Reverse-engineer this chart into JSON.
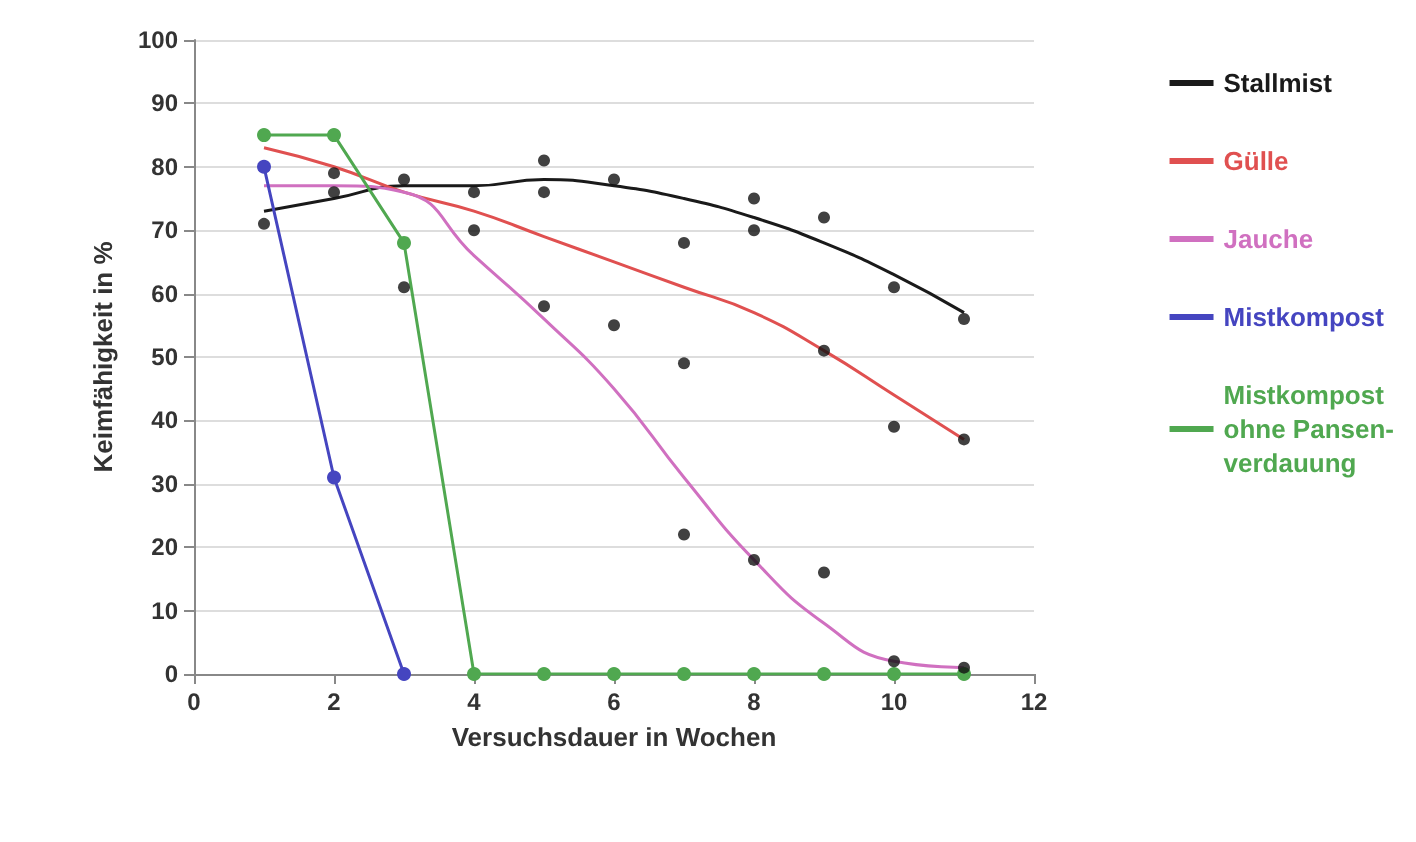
{
  "chart_data": {
    "type": "line",
    "xlabel": "Versuchsdauer in Wochen",
    "ylabel": "Keimfähigkeit in %",
    "xlim": [
      0,
      12
    ],
    "xticks": [
      0,
      2,
      4,
      6,
      8,
      10,
      12
    ],
    "ylim": [
      0,
      100
    ],
    "yticks": [
      0,
      10,
      20,
      30,
      40,
      50,
      60,
      70,
      80,
      90,
      100
    ],
    "grid": "y",
    "legend": "right",
    "series": [
      {
        "name": "Stallmist",
        "color": "#1a1a1a",
        "marker": "none",
        "x": [
          1,
          2,
          3,
          4,
          5,
          6,
          7,
          8,
          9,
          10,
          11
        ],
        "values": [
          73,
          75,
          77,
          77,
          78,
          77,
          75,
          72,
          68,
          63,
          57
        ]
      },
      {
        "name": "Gülle",
        "color": "#e05050",
        "marker": "none",
        "x": [
          1,
          2,
          3,
          4,
          5,
          6,
          7,
          8,
          9,
          10,
          11
        ],
        "values": [
          83,
          80,
          76,
          73,
          69,
          65,
          61,
          57,
          51,
          44,
          37
        ]
      },
      {
        "name": "Jauche",
        "color": "#d070c0",
        "marker": "none",
        "x": [
          1,
          2,
          3,
          4,
          5,
          6,
          7,
          8,
          9,
          10,
          11
        ],
        "values": [
          77,
          77,
          76,
          66,
          56,
          45,
          31,
          18,
          8,
          2,
          1
        ]
      },
      {
        "name": "Mistkompost",
        "color": "#4545c0",
        "marker": "circle",
        "x": [
          1,
          2,
          3
        ],
        "values": [
          80,
          31,
          0
        ]
      },
      {
        "name": "Mistkompost ohne Pansen-verdauung",
        "color": "#50a850",
        "marker": "circle",
        "x": [
          1,
          2,
          3,
          4,
          5,
          6,
          7,
          8,
          9,
          10,
          11
        ],
        "values": [
          85,
          85,
          68,
          0,
          0,
          0,
          0,
          0,
          0,
          0,
          0
        ]
      },
      {
        "type": "scatter",
        "color": "#111111",
        "marker": "circle",
        "x": [
          1,
          2,
          2,
          3,
          3,
          4,
          4,
          5,
          5,
          5,
          6,
          6,
          7,
          7,
          7,
          8,
          8,
          8,
          9,
          9,
          9,
          10,
          10,
          10,
          11,
          11,
          11
        ],
        "values": [
          71,
          79,
          76,
          78,
          61,
          76,
          70,
          81,
          76,
          58,
          78,
          55,
          68,
          49,
          22,
          75,
          70,
          18,
          72,
          51,
          16,
          61,
          39,
          2,
          56,
          37,
          1
        ]
      }
    ]
  }
}
